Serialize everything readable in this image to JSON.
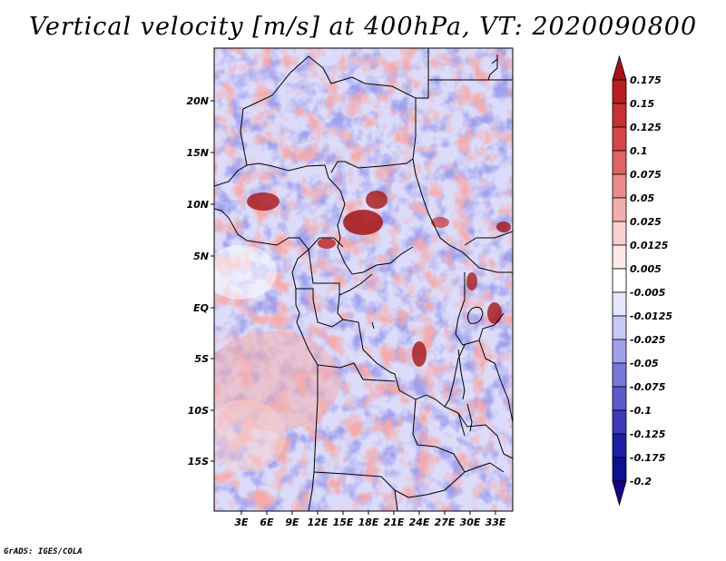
{
  "title": "Vertical velocity [m/s] at 400hPa, VT: 2020090800",
  "credit": "GrADS: IGES/COLA",
  "latitude_labels": [
    "20N",
    "15N",
    "10N",
    "5N",
    "EQ",
    "5S",
    "10S",
    "15S"
  ],
  "longitude_labels": [
    "3E",
    "6E",
    "9E",
    "12E",
    "15E",
    "18E",
    "21E",
    "24E",
    "27E",
    "30E",
    "33E"
  ],
  "colorbar": {
    "levels": [
      "0.175",
      "0.15",
      "0.125",
      "0.1",
      "0.075",
      "0.05",
      "0.025",
      "0.0125",
      "0.005",
      "-0.005",
      "-0.0125",
      "-0.025",
      "-0.05",
      "-0.075",
      "-0.1",
      "-0.125",
      "-0.175",
      "-0.2"
    ],
    "colors": [
      "#a51414",
      "#b91e1e",
      "#c83232",
      "#d54646",
      "#e06464",
      "#ea8a8a",
      "#f2aeae",
      "#f9d0d0",
      "#fde9e9",
      "#ffffff",
      "#e6e6ff",
      "#c8c8f5",
      "#a0a0eb",
      "#7878dc",
      "#5a5acd",
      "#3c3cb9",
      "#1e1ea5",
      "#0f0f91",
      "#1a0088"
    ]
  },
  "colors": {
    "positive": "#c83232",
    "negative": "#3c3cb9",
    "boundary": "#000000"
  }
}
